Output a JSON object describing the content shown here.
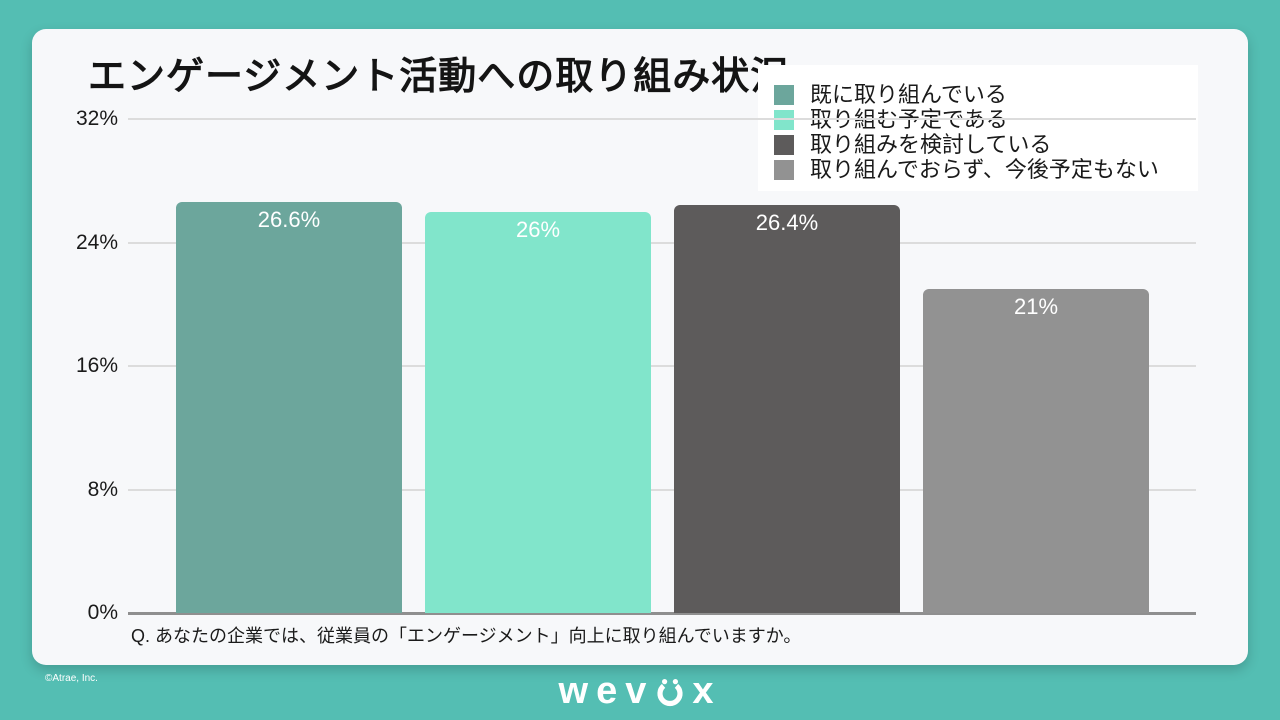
{
  "chart_data": {
    "type": "bar",
    "title": "エンゲージメント活動への取り組み状況",
    "question": "Q. あなたの企業では、従業員の「エンゲージメント」向上に取り組んでいますか。",
    "categories": [
      "既に取り組んでいる",
      "取り組む予定である",
      "取り組みを検討している",
      "取り組んでおらず、今後予定もない"
    ],
    "values": [
      26.6,
      26.0,
      26.4,
      21.0
    ],
    "value_labels": [
      "26.6%",
      "26%",
      "26.4%",
      "21%"
    ],
    "bar_colors": [
      "#6CA69C",
      "#81E5CB",
      "#5D5B5B",
      "#929292"
    ],
    "y_ticks": [
      {
        "label": "32%",
        "value": 32
      },
      {
        "label": "24%",
        "value": 24
      },
      {
        "label": "16%",
        "value": 16
      },
      {
        "label": "8%",
        "value": 8
      },
      {
        "label": "0%",
        "value": 0
      }
    ],
    "ylim": [
      0,
      32
    ],
    "grid": true,
    "legend_position": "top-right"
  },
  "colors": {
    "background": "#54BEB3",
    "card_bg": "#F7F8FA",
    "legend_bg": "#FFFFFF",
    "gridline": "#DCDCDC",
    "baseline": "#8F8F8F",
    "title_text": "#141414",
    "axis_text": "#1A1A1A",
    "value_text": "#FFFFFF",
    "question_text": "#1A1A1A",
    "footer_text": "#FFFFFF"
  },
  "footer": {
    "copyright": "©Atrae, Inc.",
    "logo_name": "wevox",
    "logo_text_left": "wev",
    "logo_text_right": "x"
  }
}
